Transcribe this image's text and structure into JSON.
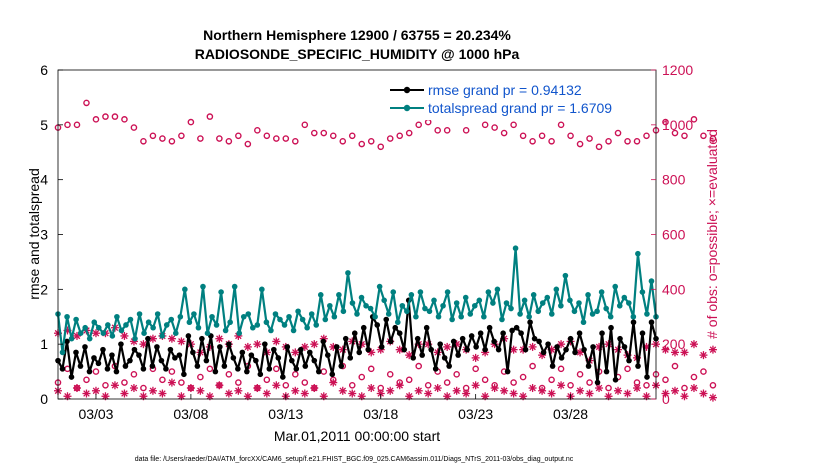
{
  "chart_data": {
    "type": "line",
    "title": "Northern Hemisphere 12900 / 63755 = 20.234%",
    "subtitle": "RADIOSONDE_SPECIFIC_HUMIDITY @ 1000 hPa",
    "xlabel": "Mar.01,2011 00:00:00 start",
    "ylabel_left": "rmse and totalspread",
    "ylabel_right": "# of obs: o=possible; ×=evaluated",
    "footer": "data file: /Users/raeder/DAI/ATM_forcXX/CAM6_setup/f.e21.FHIST_BGC.f09_025.CAM6assim.011/Diags_NTrS_2011-03/obs_diag_output.nc",
    "x_start_day": 1,
    "xlim": [
      1,
      32.5
    ],
    "ylim_left": [
      0,
      6
    ],
    "ylim_right": [
      0,
      1200
    ],
    "y_ticks_left": [
      "0",
      "1",
      "2",
      "3",
      "4",
      "5",
      "6"
    ],
    "y_ticks_right": [
      "0",
      "200",
      "400",
      "600",
      "800",
      "1000",
      "1200"
    ],
    "x_ticks": [
      {
        "day": 3,
        "label": "03/03"
      },
      {
        "day": 8,
        "label": "03/08"
      },
      {
        "day": 13,
        "label": "03/13"
      },
      {
        "day": 18,
        "label": "03/18"
      },
      {
        "day": 23,
        "label": "03/23"
      },
      {
        "day": 28,
        "label": "03/28"
      }
    ],
    "colors": {
      "rmse": "#000000",
      "spread": "#008080",
      "obs": "#cc1155"
    },
    "series": [
      {
        "name": "rmse grand pr = 0.94132",
        "axis": "left",
        "values": [
          0.7,
          0.55,
          1.05,
          0.4,
          0.85,
          0.6,
          0.95,
          0.5,
          0.75,
          0.65,
          0.9,
          0.55,
          0.8,
          0.5,
          1.0,
          0.6,
          0.7,
          0.9,
          0.8,
          0.55,
          1.1,
          0.6,
          0.95,
          0.7,
          0.55,
          0.9,
          0.75,
          0.8,
          0.45,
          1.15,
          0.85,
          0.6,
          1.1,
          0.7,
          1.15,
          0.5,
          0.95,
          0.6,
          1.0,
          0.75,
          0.55,
          0.85,
          0.5,
          0.8,
          0.7,
          0.45,
          1.0,
          0.55,
          0.9,
          0.75,
          0.4,
          0.95,
          0.7,
          0.55,
          0.9,
          0.6,
          0.85,
          0.7,
          0.5,
          1.05,
          0.8,
          0.45,
          0.95,
          0.6,
          1.1,
          0.75,
          1.2,
          0.85,
          1.3,
          0.9,
          1.5,
          1.35,
          0.95,
          1.45,
          1.05,
          1.3,
          1.2,
          0.9,
          1.8,
          0.75,
          1.1,
          0.8,
          1.3,
          0.9,
          0.55,
          1.0,
          0.75,
          0.6,
          1.05,
          0.8,
          1.1,
          0.9,
          1.15,
          0.95,
          1.2,
          0.9,
          1.3,
          1.05,
          0.9,
          1.2,
          0.5,
          1.25,
          1.3,
          1.2,
          0.9,
          1.4,
          1.1,
          1.05,
          0.85,
          1.0,
          0.6,
          0.95,
          0.75,
          0.9,
          1.1,
          0.85,
          1.2,
          0.9,
          0.6,
          0.95,
          0.3,
          1.2,
          0.5,
          1.3,
          0.35,
          1.1,
          0.95,
          0.7,
          1.4,
          0.6,
          1.2,
          0.4,
          1.4,
          1.1
        ]
      },
      {
        "name": "totalspread grand pr = 1.6709",
        "axis": "left",
        "values": [
          1.55,
          0.85,
          1.5,
          1.1,
          1.45,
          1.2,
          1.3,
          1.1,
          1.4,
          1.3,
          1.2,
          1.35,
          1.15,
          1.5,
          1.25,
          1.35,
          1.45,
          1.1,
          1.55,
          1.2,
          1.4,
          1.3,
          1.55,
          1.15,
          1.35,
          1.45,
          1.2,
          1.5,
          2.0,
          1.4,
          1.55,
          1.3,
          2.05,
          1.2,
          1.5,
          1.35,
          1.95,
          1.25,
          1.4,
          2.05,
          1.2,
          1.5,
          1.55,
          1.3,
          1.35,
          2.0,
          1.4,
          1.25,
          1.55,
          1.45,
          1.35,
          1.5,
          1.25,
          1.6,
          1.45,
          1.3,
          1.55,
          1.35,
          1.9,
          1.45,
          1.7,
          1.5,
          1.9,
          1.6,
          2.3,
          1.75,
          1.55,
          1.85,
          1.7,
          1.65,
          1.5,
          2.05,
          1.8,
          1.55,
          1.95,
          1.4,
          1.7,
          1.6,
          1.9,
          1.5,
          1.95,
          1.65,
          1.6,
          1.8,
          1.5,
          1.7,
          1.95,
          1.45,
          1.75,
          1.5,
          1.85,
          1.55,
          1.7,
          1.8,
          1.5,
          1.95,
          1.75,
          2.0,
          1.45,
          1.75,
          1.65,
          2.75,
          1.55,
          1.8,
          1.5,
          1.9,
          1.6,
          1.75,
          1.85,
          1.55,
          2.0,
          1.7,
          2.25,
          1.8,
          1.6,
          1.75,
          1.4,
          1.9,
          1.55,
          1.6,
          1.95,
          1.65,
          1.5,
          2.05,
          1.7,
          1.85,
          1.75,
          1.5,
          2.65,
          1.95,
          1.55,
          2.15,
          1.5
        ]
      },
      {
        "name": "obs possible",
        "axis": "right",
        "values": [
          990,
          1000,
          1000,
          1080,
          1020,
          1030,
          1030,
          1020,
          990,
          940,
          960,
          950,
          940,
          960,
          1010,
          950,
          1030,
          950,
          940,
          960,
          930,
          980,
          960,
          950,
          950,
          940,
          1000,
          970,
          970,
          960,
          940,
          960,
          930,
          940,
          920,
          950,
          960,
          970,
          1000,
          1010,
          980,
          980,
          1040,
          980,
          1050,
          1000,
          990,
          970,
          1000,
          960,
          940,
          960,
          940,
          1000,
          960,
          930,
          950,
          920,
          940,
          970,
          940,
          940,
          960,
          980,
          1010,
          970,
          960,
          1020,
          960,
          950
        ],
        "x_step": 0.5
      },
      {
        "name": "obs possible (lower)",
        "axis": "right",
        "values": [
          60,
          110,
          40,
          70,
          100,
          50,
          120,
          60,
          90,
          40,
          110,
          70,
          100,
          60,
          40,
          80,
          110,
          50,
          90,
          60,
          120,
          40,
          70,
          110,
          50,
          90,
          60,
          40,
          100,
          70,
          120,
          50,
          80,
          110,
          40,
          90,
          60,
          70,
          120,
          50,
          100,
          60,
          90,
          40,
          110,
          70,
          50,
          100,
          60,
          80,
          120,
          40,
          70,
          110,
          50,
          90,
          60,
          100,
          40,
          80,
          110,
          60,
          50,
          90,
          70,
          120,
          40,
          80,
          100,
          50
        ],
        "x_step": 0.5
      },
      {
        "name": "obs evaluated",
        "axis": "right",
        "values": [
          240,
          250,
          230,
          250,
          240,
          240,
          260,
          230,
          210,
          200,
          220,
          230,
          220,
          210,
          200,
          170,
          190,
          220,
          200,
          230,
          190,
          200,
          170,
          210,
          190,
          170,
          190,
          200,
          220,
          190,
          180,
          210,
          200,
          170,
          180,
          210,
          180,
          160,
          200,
          200,
          170,
          190,
          200,
          180,
          150,
          170,
          200,
          220,
          180,
          180,
          190,
          160,
          180,
          200,
          210,
          170,
          140,
          190,
          200,
          180,
          160,
          150,
          190,
          200,
          180,
          170,
          170,
          200,
          160,
          180
        ],
        "x_step": 0.5
      },
      {
        "name": "obs evaluated (lower)",
        "axis": "right",
        "values": [
          30,
          10,
          40,
          20,
          30,
          10,
          50,
          20,
          40,
          10,
          30,
          20,
          60,
          10,
          40,
          30,
          10,
          50,
          20,
          30,
          10,
          40,
          20,
          50,
          10,
          30,
          20,
          40,
          10,
          60,
          30,
          20,
          10,
          40,
          20,
          30,
          50,
          10,
          30,
          20,
          40,
          10,
          30,
          20,
          50,
          10,
          40,
          30,
          20,
          10,
          40,
          30,
          20,
          50,
          10,
          30,
          20,
          40,
          10,
          30,
          20,
          40,
          10,
          50,
          20,
          30,
          10,
          40,
          20,
          5
        ],
        "x_step": 0.5
      }
    ],
    "legend": {
      "placement": "top-right",
      "rmse_label": "rmse grand pr = 0.94132",
      "spread_label": "totalspread grand pr = 1.6709"
    }
  }
}
